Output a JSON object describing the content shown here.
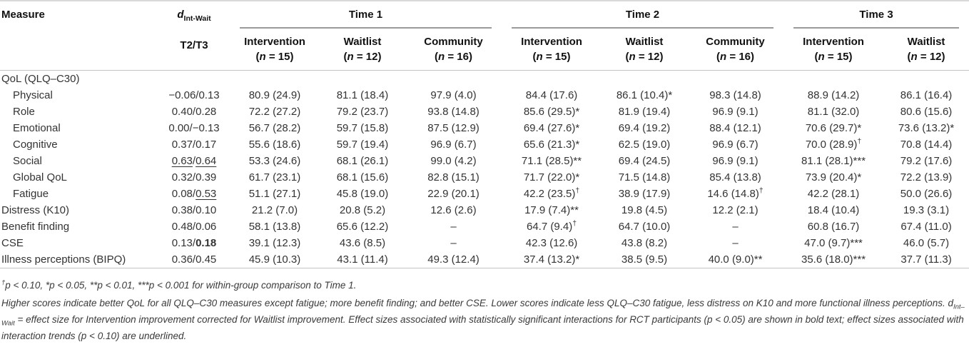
{
  "table": {
    "measure_header": "Measure",
    "effect_col": {
      "symbol": "d",
      "subscript": "Int-Wait",
      "sub_header": "T2/T3"
    },
    "groups": [
      {
        "label": "Time 1",
        "columns": [
          {
            "label": "Intervention",
            "n": "([i]n[/i] = 15)"
          },
          {
            "label": "Waitlist",
            "n": "([i]n[/i] = 12)"
          },
          {
            "label": "Community",
            "n": "([i]n[/i] = 16)"
          }
        ]
      },
      {
        "label": "Time 2",
        "columns": [
          {
            "label": "Intervention",
            "n": "([i]n[/i] = 15)"
          },
          {
            "label": "Waitlist",
            "n": "([i]n[/i] = 12)"
          },
          {
            "label": "Community",
            "n": "([i]n[/i] = 16)"
          }
        ]
      },
      {
        "label": "Time 3",
        "columns": [
          {
            "label": "Intervention",
            "n": "([i]n[/i] = 15)"
          },
          {
            "label": "Waitlist",
            "n": "([i]n[/i] = 12)"
          }
        ]
      }
    ],
    "rows": [
      {
        "label": "QoL (QLQ–C30)",
        "indent": false,
        "cells": [
          "",
          "",
          "",
          "",
          "",
          "",
          "",
          "",
          ""
        ]
      },
      {
        "label": "Physical",
        "indent": true,
        "cells": [
          "−0.06/0.13",
          "80.9 (24.9)",
          "81.1 (18.4)",
          "97.9 (4.0)",
          "84.4 (17.6)",
          "86.1 (10.4)*",
          "98.3 (14.8)",
          "88.9 (14.2)",
          "86.1 (16.4)"
        ]
      },
      {
        "label": "Role",
        "indent": true,
        "cells": [
          "0.40/0.28",
          "72.2 (27.2)",
          "79.2 (23.7)",
          "93.8 (14.8)",
          "85.6 (29.5)*",
          "81.9 (19.4)",
          "96.9 (9.1)",
          "81.1 (32.0)",
          "80.6 (15.6)"
        ]
      },
      {
        "label": "Emotional",
        "indent": true,
        "cells": [
          "0.00/−0.13",
          "56.7 (28.2)",
          "59.7 (15.8)",
          "87.5 (12.9)",
          "69.4 (27.6)*",
          "69.4 (19.2)",
          "88.4 (12.1)",
          "70.6 (29.7)*",
          "73.6 (13.2)*"
        ]
      },
      {
        "label": "Cognitive",
        "indent": true,
        "cells": [
          "0.37/0.17",
          "55.6 (18.6)",
          "59.7 (19.4)",
          "96.9 (6.7)",
          "65.6 (21.3)*",
          "62.5 (19.0)",
          "96.9 (6.7)",
          "70.0 (28.9)[sup]†[/sup]",
          "70.8 (14.4)"
        ]
      },
      {
        "label": "Social",
        "indent": true,
        "cells": [
          "[u]0.63[/u]/[u]0.64[/u]",
          "53.3 (24.6)",
          "68.1 (26.1)",
          "99.0 (4.2)",
          "71.1 (28.5)**",
          "69.4 (24.5)",
          "96.9 (9.1)",
          "81.1 (28.1)***",
          "79.2 (17.6)"
        ]
      },
      {
        "label": "Global QoL",
        "indent": true,
        "cells": [
          "0.32/0.39",
          "61.7 (23.1)",
          "68.1 (15.6)",
          "82.8 (15.1)",
          "71.7 (22.0)*",
          "71.5 (14.8)",
          "85.4 (13.8)",
          "73.9 (20.4)*",
          "72.2 (13.9)"
        ]
      },
      {
        "label": "Fatigue",
        "indent": true,
        "cells": [
          "0.08/[u]0.53[/u]",
          "51.1 (27.1)",
          "45.8 (19.0)",
          "22.9 (20.1)",
          "42.2 (23.5)[sup]†[/sup]",
          "38.9 (17.9)",
          "14.6 (14.8)[sup]†[/sup]",
          "42.2 (28.1)",
          "50.0 (26.6)"
        ]
      },
      {
        "label": "Distress (K10)",
        "indent": false,
        "cells": [
          "0.38/0.10",
          "21.2 (7.0)",
          "20.8 (5.2)",
          "12.6 (2.6)",
          "17.9 (7.4)**",
          "19.8 (4.5)",
          "12.2 (2.1)",
          "18.4 (10.4)",
          "19.3 (3.1)"
        ]
      },
      {
        "label": "Benefit finding",
        "indent": false,
        "cells": [
          "0.48/0.06",
          "58.1 (13.8)",
          "65.6 (12.2)",
          "–",
          "64.7 (9.4)[sup]†[/sup]",
          "64.7 (10.0)",
          "–",
          "60.8 (16.7)",
          "67.4 (11.0)"
        ]
      },
      {
        "label": "CSE",
        "indent": false,
        "cells": [
          "0.13/[b]0.18[/b]",
          "39.1 (12.3)",
          "43.6 (8.5)",
          "–",
          "42.3 (12.6)",
          "43.8 (8.2)",
          "–",
          "47.0 (9.7)***",
          "46.0 (5.7)"
        ]
      },
      {
        "label": "Illness perceptions (BIPQ)",
        "indent": false,
        "cells": [
          "0.36/0.45",
          "45.9 (10.3)",
          "43.1 (11.4)",
          "49.3 (12.4)",
          "37.4 (13.2)*",
          "38.5 (9.5)",
          "40.0 (9.0)**",
          "35.6 (18.0)***",
          "37.7 (11.3)"
        ]
      }
    ]
  },
  "footnotes": [
    "[sup]†[/sup]p < 0.10, *p < 0.05, **p < 0.01, ***p < 0.001 for within-group comparison to Time 1.",
    "Higher scores indicate better QoL for all QLQ–C30 measures except fatigue; more benefit finding; and better CSE. Lower scores indicate less QLQ–C30 fatigue, less distress on K10 and more functional illness perceptions. d[sub]Int–Wait[/sub] = effect size for Intervention improvement corrected for Waitlist improvement. Effect sizes associated with statistically significant interactions for RCT participants (p < 0.05) are shown in bold text; effect sizes associated with interaction trends (p < 0.10) are underlined."
  ]
}
